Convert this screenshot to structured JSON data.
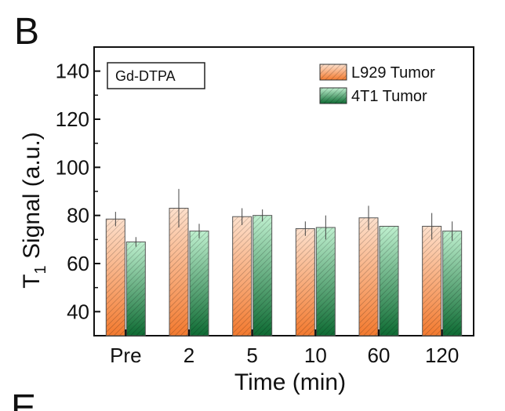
{
  "panel_letter": "B",
  "next_panel_letter": "E",
  "chart_data": {
    "type": "bar",
    "title": "",
    "annotation": "Gd-DTPA",
    "xlabel": "Time (min)",
    "ylabel_main": "T",
    "ylabel_sub": "1",
    "ylabel_rest": " Signal (a.u.)",
    "categories": [
      "Pre",
      "2",
      "5",
      "10",
      "60",
      "120"
    ],
    "ylim": [
      30,
      150
    ],
    "yticks": [
      "40",
      "60",
      "80",
      "100",
      "120",
      "140"
    ],
    "ytick_values": [
      40,
      60,
      80,
      100,
      120,
      140
    ],
    "grid": false,
    "legend_position": "top-right",
    "series": [
      {
        "name": "L929 Tumor",
        "color": "#f58a4b",
        "values": [
          78.5,
          83,
          79.5,
          74.5,
          79,
          75.5
        ],
        "errors": [
          3,
          8,
          3.5,
          3,
          5,
          5.5
        ]
      },
      {
        "name": "4T1 Tumor",
        "color": "#1f8f4e",
        "values": [
          69,
          73.5,
          80,
          75,
          75.5,
          73.5
        ],
        "errors": [
          2,
          3,
          2.5,
          5,
          0,
          4
        ]
      }
    ]
  }
}
